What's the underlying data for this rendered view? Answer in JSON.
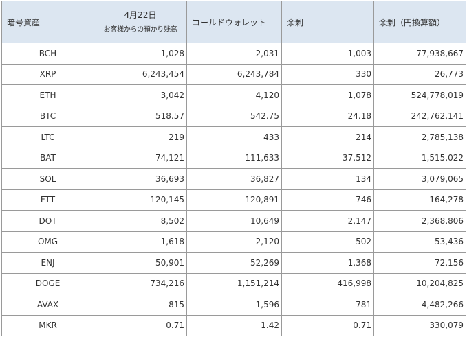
{
  "table": {
    "headers": {
      "asset": "暗号資産",
      "date": "4月22日",
      "date_sub": "お客様からの預かり残高",
      "cold": "コールドウォレット",
      "surplus": "余剰",
      "surplus_jpy": "余剰（円換算額）"
    },
    "rows": [
      {
        "symbol": "BCH",
        "customer": "1,028",
        "cold": "2,031",
        "surplus": "1,003",
        "jpy": "77,938,667"
      },
      {
        "symbol": "XRP",
        "customer": "6,243,454",
        "cold": "6,243,784",
        "surplus": "330",
        "jpy": "26,773"
      },
      {
        "symbol": "ETH",
        "customer": "3,042",
        "cold": "4,120",
        "surplus": "1,078",
        "jpy": "524,778,019"
      },
      {
        "symbol": "BTC",
        "customer": "518.57",
        "cold": "542.75",
        "surplus": "24.18",
        "jpy": "242,762,141"
      },
      {
        "symbol": "LTC",
        "customer": "219",
        "cold": "433",
        "surplus": "214",
        "jpy": "2,785,138"
      },
      {
        "symbol": "BAT",
        "customer": "74,121",
        "cold": "111,633",
        "surplus": "37,512",
        "jpy": "1,515,022"
      },
      {
        "symbol": "SOL",
        "customer": "36,693",
        "cold": "36,827",
        "surplus": "134",
        "jpy": "3,079,065"
      },
      {
        "symbol": "FTT",
        "customer": "120,145",
        "cold": "120,891",
        "surplus": "746",
        "jpy": "164,278"
      },
      {
        "symbol": "DOT",
        "customer": "8,502",
        "cold": "10,649",
        "surplus": "2,147",
        "jpy": "2,368,806"
      },
      {
        "symbol": "OMG",
        "customer": "1,618",
        "cold": "2,120",
        "surplus": "502",
        "jpy": "53,436"
      },
      {
        "symbol": "ENJ",
        "customer": "50,901",
        "cold": "52,269",
        "surplus": "1,368",
        "jpy": "72,156"
      },
      {
        "symbol": "DOGE",
        "customer": "734,216",
        "cold": "1,151,214",
        "surplus": "416,998",
        "jpy": "10,204,825"
      },
      {
        "symbol": "AVAX",
        "customer": "815",
        "cold": "1,596",
        "surplus": "781",
        "jpy": "4,482,266"
      },
      {
        "symbol": "MKR",
        "customer": "0.71",
        "cold": "1.42",
        "surplus": "0.71",
        "jpy": "330,079"
      }
    ]
  }
}
